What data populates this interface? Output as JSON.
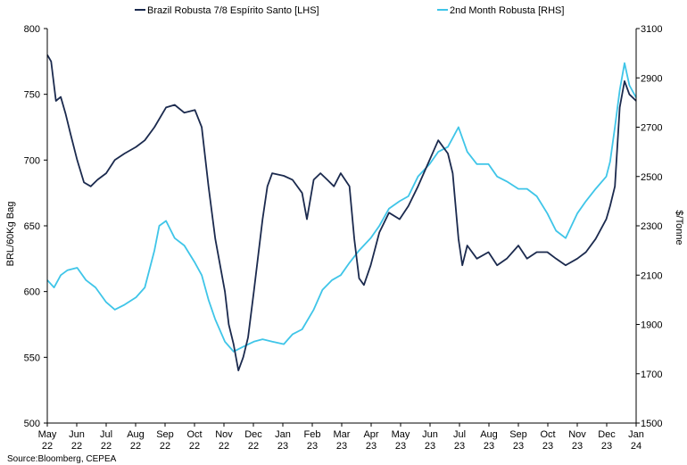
{
  "chart_data": {
    "type": "line",
    "source": "Source:Bloomberg, CEPEA",
    "xlabel": "",
    "x_ticks": [
      {
        "month": "May",
        "year": "22"
      },
      {
        "month": "Jun",
        "year": "22"
      },
      {
        "month": "Jul",
        "year": "22"
      },
      {
        "month": "Aug",
        "year": "22"
      },
      {
        "month": "Sep",
        "year": "22"
      },
      {
        "month": "Oct",
        "year": "22"
      },
      {
        "month": "Nov",
        "year": "22"
      },
      {
        "month": "Dec",
        "year": "22"
      },
      {
        "month": "Jan",
        "year": "23"
      },
      {
        "month": "Feb",
        "year": "23"
      },
      {
        "month": "Mar",
        "year": "23"
      },
      {
        "month": "Apr",
        "year": "23"
      },
      {
        "month": "May",
        "year": "23"
      },
      {
        "month": "Jun",
        "year": "23"
      },
      {
        "month": "Jul",
        "year": "23"
      },
      {
        "month": "Aug",
        "year": "23"
      },
      {
        "month": "Sep",
        "year": "23"
      },
      {
        "month": "Oct",
        "year": "23"
      },
      {
        "month": "Nov",
        "year": "23"
      },
      {
        "month": "Dec",
        "year": "23"
      },
      {
        "month": "Jan",
        "year": "24"
      }
    ],
    "y_left": {
      "label": "BRL/60Kg Bag",
      "min": 500,
      "max": 800,
      "ticks": [
        500,
        550,
        600,
        650,
        700,
        750,
        800
      ]
    },
    "y_right": {
      "label": "$/Tonne",
      "min": 1500,
      "max": 3100,
      "ticks": [
        1500,
        1700,
        1900,
        2100,
        2300,
        2500,
        2700,
        2900,
        3100
      ]
    },
    "legend_position": "top",
    "series": [
      {
        "name": "Brazil Robusta 7/8 Espírito Santo [LHS]",
        "axis": "left",
        "color": "#1b2a4e",
        "x": [
          "2022-05-01",
          "2022-05-05",
          "2022-05-10",
          "2022-05-15",
          "2022-05-20",
          "2022-05-25",
          "2022-06-01",
          "2022-06-08",
          "2022-06-15",
          "2022-06-22",
          "2022-07-01",
          "2022-07-10",
          "2022-07-20",
          "2022-08-01",
          "2022-08-10",
          "2022-08-20",
          "2022-09-01",
          "2022-09-10",
          "2022-09-20",
          "2022-10-01",
          "2022-10-08",
          "2022-10-15",
          "2022-10-22",
          "2022-11-01",
          "2022-11-05",
          "2022-11-10",
          "2022-11-15",
          "2022-11-20",
          "2022-11-25",
          "2022-12-01",
          "2022-12-10",
          "2022-12-15",
          "2022-12-20",
          "2023-01-01",
          "2023-01-10",
          "2023-01-20",
          "2023-01-25",
          "2023-02-01",
          "2023-02-08",
          "2023-02-15",
          "2023-02-22",
          "2023-03-01",
          "2023-03-10",
          "2023-03-15",
          "2023-03-20",
          "2023-03-25",
          "2023-04-01",
          "2023-04-10",
          "2023-04-20",
          "2023-05-01",
          "2023-05-10",
          "2023-05-20",
          "2023-06-01",
          "2023-06-10",
          "2023-06-20",
          "2023-06-25",
          "2023-07-01",
          "2023-07-05",
          "2023-07-10",
          "2023-07-20",
          "2023-08-01",
          "2023-08-10",
          "2023-08-20",
          "2023-09-01",
          "2023-09-10",
          "2023-09-20",
          "2023-10-01",
          "2023-10-10",
          "2023-10-20",
          "2023-11-01",
          "2023-11-10",
          "2023-11-20",
          "2023-12-01",
          "2023-12-05",
          "2023-12-10",
          "2023-12-15",
          "2023-12-20",
          "2023-12-25",
          "2024-01-01"
        ],
        "values": [
          780,
          775,
          745,
          748,
          735,
          720,
          700,
          683,
          680,
          685,
          690,
          700,
          705,
          710,
          715,
          725,
          740,
          742,
          736,
          738,
          725,
          680,
          640,
          600,
          575,
          560,
          540,
          550,
          565,
          600,
          655,
          680,
          690,
          688,
          685,
          675,
          655,
          685,
          690,
          685,
          680,
          690,
          680,
          640,
          610,
          605,
          620,
          645,
          660,
          655,
          665,
          680,
          700,
          715,
          705,
          690,
          640,
          620,
          635,
          625,
          630,
          620,
          625,
          635,
          625,
          630,
          630,
          625,
          620,
          625,
          630,
          640,
          655,
          665,
          680,
          740,
          760,
          750,
          745
        ]
      },
      {
        "name": "2nd Month Robusta [RHS]",
        "axis": "right",
        "color": "#3fc5e8",
        "x": [
          "2022-05-01",
          "2022-05-08",
          "2022-05-15",
          "2022-05-22",
          "2022-06-01",
          "2022-06-10",
          "2022-06-20",
          "2022-07-01",
          "2022-07-10",
          "2022-07-20",
          "2022-08-01",
          "2022-08-10",
          "2022-08-20",
          "2022-08-25",
          "2022-09-01",
          "2022-09-10",
          "2022-09-20",
          "2022-10-01",
          "2022-10-08",
          "2022-10-15",
          "2022-10-22",
          "2022-11-01",
          "2022-11-10",
          "2022-11-20",
          "2022-12-01",
          "2022-12-10",
          "2022-12-20",
          "2023-01-01",
          "2023-01-10",
          "2023-01-20",
          "2023-02-01",
          "2023-02-10",
          "2023-02-20",
          "2023-03-01",
          "2023-03-10",
          "2023-03-20",
          "2023-04-01",
          "2023-04-10",
          "2023-04-20",
          "2023-05-01",
          "2023-05-10",
          "2023-05-20",
          "2023-06-01",
          "2023-06-10",
          "2023-06-20",
          "2023-07-01",
          "2023-07-10",
          "2023-07-20",
          "2023-08-01",
          "2023-08-10",
          "2023-08-20",
          "2023-09-01",
          "2023-09-10",
          "2023-09-20",
          "2023-10-01",
          "2023-10-10",
          "2023-10-20",
          "2023-11-01",
          "2023-11-10",
          "2023-11-20",
          "2023-12-01",
          "2023-12-05",
          "2023-12-10",
          "2023-12-15",
          "2023-12-20",
          "2023-12-25",
          "2024-01-01"
        ],
        "values": [
          2080,
          2050,
          2100,
          2120,
          2130,
          2080,
          2050,
          1990,
          1960,
          1980,
          2010,
          2050,
          2200,
          2300,
          2320,
          2250,
          2220,
          2150,
          2100,
          2000,
          1920,
          1830,
          1790,
          1810,
          1830,
          1840,
          1830,
          1820,
          1860,
          1880,
          1960,
          2040,
          2080,
          2100,
          2150,
          2200,
          2250,
          2300,
          2370,
          2400,
          2420,
          2500,
          2550,
          2600,
          2620,
          2700,
          2600,
          2550,
          2550,
          2500,
          2480,
          2450,
          2450,
          2420,
          2350,
          2280,
          2250,
          2350,
          2400,
          2450,
          2500,
          2560,
          2700,
          2850,
          2960,
          2870,
          2820
        ]
      }
    ]
  }
}
